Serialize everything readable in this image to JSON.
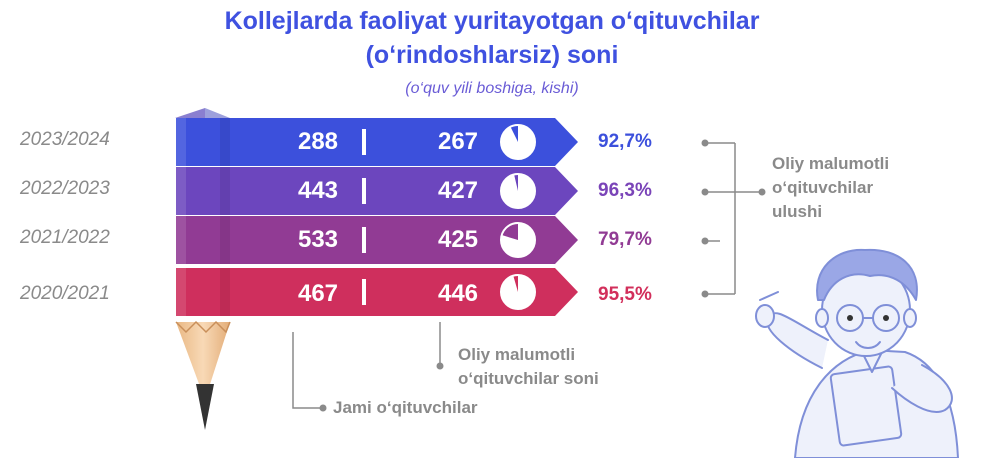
{
  "title_line1": "Kollejlarda faoliyat yuritayotgan o‘qituvchilar",
  "title_line2": "(o‘rindoshlarsiz) soni",
  "subtitle": "(o‘quv yili boshiga, kishi)",
  "colors": {
    "title": "#3f51e0",
    "rows": [
      "#3c50dc",
      "#6c46be",
      "#913b94",
      "#cf2f5d"
    ],
    "pct_text": [
      "#3c50dc",
      "#7a44b8",
      "#913b94",
      "#d22f5b"
    ],
    "pencil_wood": "#f2c79b",
    "pencil_lead": "#333333"
  },
  "chart_data": {
    "type": "table",
    "years": [
      "2023/2024",
      "2022/2023",
      "2021/2022",
      "2020/2021"
    ],
    "total_teachers": [
      288,
      443,
      533,
      467
    ],
    "higher_edu_teachers": [
      267,
      427,
      425,
      446
    ],
    "share_labels": [
      "92,7%",
      "96,3%",
      "79,7%",
      "95,5%"
    ],
    "share_values": [
      92.7,
      96.3,
      79.7,
      95.5
    ],
    "legend_total": "Jami o‘qituvchilar",
    "legend_higher_line1": "Oliy malumotli",
    "legend_higher_line2": "o‘qituvchilar soni",
    "legend_share_line1": "Oliy malumotli",
    "legend_share_line2": "o‘qituvchilar",
    "legend_share_line3": "ulushi"
  }
}
